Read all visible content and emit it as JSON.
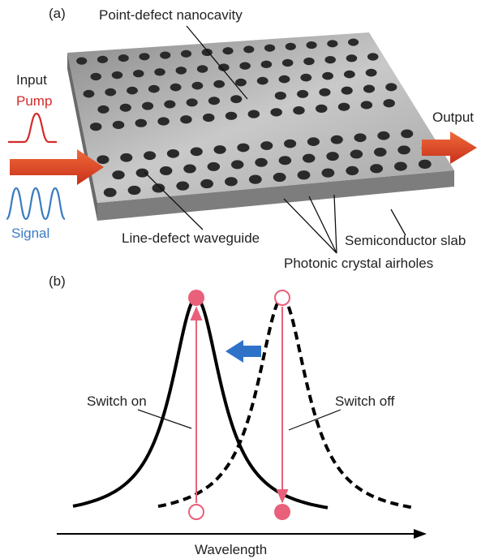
{
  "panel_a": {
    "label": "(a)",
    "nanocavity": "Point-defect nanocavity",
    "input": "Input",
    "pump": "Pump",
    "signal": "Signal",
    "output": "Output",
    "waveguide": "Line-defect waveguide",
    "slab": "Semiconductor slab",
    "airholes": "Photonic crystal airholes"
  },
  "panel_b": {
    "label": "(b)",
    "switch_on": "Switch on",
    "switch_off": "Switch off",
    "x_axis": "Wavelength"
  }
}
